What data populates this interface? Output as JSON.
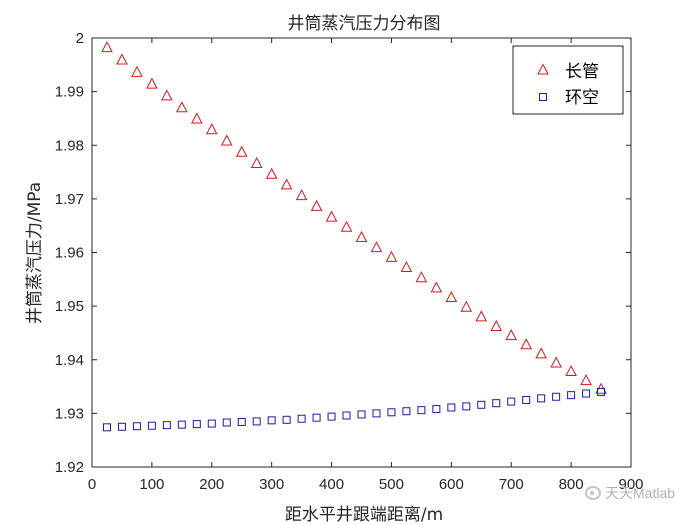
{
  "chart_data": {
    "type": "scatter",
    "title": "井筒蒸汽压力分布图",
    "xlabel": "距水平井跟端距离/m",
    "ylabel": "井筒蒸汽压力/MPa",
    "xlim": [
      0,
      900
    ],
    "ylim": [
      1.92,
      2.0
    ],
    "xticks": [
      0,
      100,
      200,
      300,
      400,
      500,
      600,
      700,
      800,
      900
    ],
    "yticks": [
      1.92,
      1.93,
      1.94,
      1.95,
      1.96,
      1.97,
      1.98,
      1.99,
      2.0
    ],
    "xtick_labels": [
      "0",
      "100",
      "200",
      "300",
      "400",
      "500",
      "600",
      "700",
      "800",
      "900"
    ],
    "ytick_labels": [
      "1.92",
      "1.93",
      "1.94",
      "1.95",
      "1.96",
      "1.97",
      "1.98",
      "1.99",
      "2"
    ],
    "grid": false,
    "legend_position": "top-right",
    "x": [
      25,
      50,
      75,
      100,
      125,
      150,
      175,
      200,
      225,
      250,
      275,
      300,
      325,
      350,
      375,
      400,
      425,
      450,
      475,
      500,
      525,
      550,
      575,
      600,
      625,
      650,
      675,
      700,
      725,
      750,
      775,
      800,
      825,
      850
    ],
    "series": [
      {
        "name": "长管",
        "marker": "triangle",
        "color": "#d7191c",
        "values": [
          1.9982,
          1.9959,
          1.9936,
          1.9914,
          1.9892,
          1.987,
          1.9849,
          1.9829,
          1.9808,
          1.9787,
          1.9766,
          1.9746,
          1.9726,
          1.9706,
          1.9686,
          1.9666,
          1.9647,
          1.9628,
          1.9609,
          1.9591,
          1.9572,
          1.9553,
          1.9534,
          1.9516,
          1.9498,
          1.948,
          1.9462,
          1.9445,
          1.9428,
          1.9411,
          1.9394,
          1.9378,
          1.9361,
          1.9345
        ]
      },
      {
        "name": "环空",
        "marker": "square",
        "color": "#1a1aa6",
        "values": [
          1.9274,
          1.9275,
          1.9276,
          1.9277,
          1.9278,
          1.9279,
          1.928,
          1.9281,
          1.9283,
          1.9284,
          1.9285,
          1.9287,
          1.9288,
          1.929,
          1.9292,
          1.9294,
          1.9296,
          1.9298,
          1.93,
          1.9302,
          1.9304,
          1.9306,
          1.9308,
          1.9311,
          1.9313,
          1.9316,
          1.9319,
          1.9322,
          1.9325,
          1.9328,
          1.9331,
          1.9334,
          1.9337,
          1.934
        ]
      }
    ]
  },
  "watermark": {
    "icon": "wechat-icon",
    "text": "天天Matlab"
  }
}
